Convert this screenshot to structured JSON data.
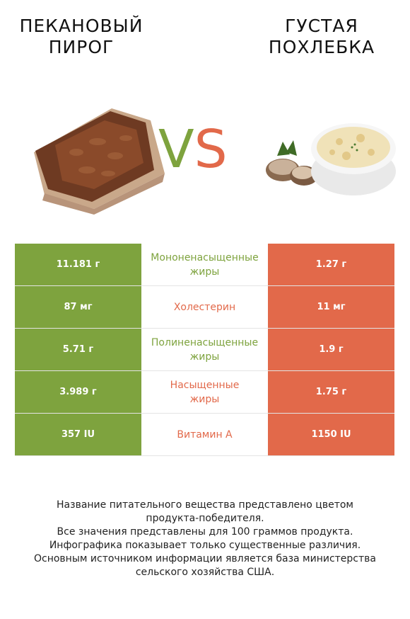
{
  "left_food": {
    "title_line1": "ПЕКАНОВЫЙ",
    "title_line2": "ПИРОГ"
  },
  "right_food": {
    "title_line1": "ГУСТАЯ",
    "title_line2": "ПОХЛЕБКА"
  },
  "vs": {
    "v": "V",
    "s": "S"
  },
  "colors": {
    "green": "#7ea33e",
    "orange": "#e2694a"
  },
  "rows": [
    {
      "left": "11.181 г",
      "name_line1": "Мононенасыщенные",
      "name_line2": "жиры",
      "right": "1.27 г",
      "winner": "green"
    },
    {
      "left": "87 мг",
      "name_line1": "Холестерин",
      "name_line2": "",
      "right": "11 мг",
      "winner": "orange"
    },
    {
      "left": "5.71 г",
      "name_line1": "Полиненасыщенные",
      "name_line2": "жиры",
      "right": "1.9 г",
      "winner": "green"
    },
    {
      "left": "3.989 г",
      "name_line1": "Насыщенные",
      "name_line2": "жиры",
      "right": "1.75 г",
      "winner": "orange"
    },
    {
      "left": "357 IU",
      "name_line1": "Витамин A",
      "name_line2": "",
      "right": "1150 IU",
      "winner": "orange"
    }
  ],
  "footer": {
    "line1": "Название питательного вещества представлено цветом",
    "line2": "продукта-победителя.",
    "line3": "Все значения представлены для 100 граммов продукта.",
    "line4": "Инфографика показывает только существенные различия.",
    "line5": "Основным источником информации является база министерства",
    "line6": "сельского хозяйства США."
  }
}
